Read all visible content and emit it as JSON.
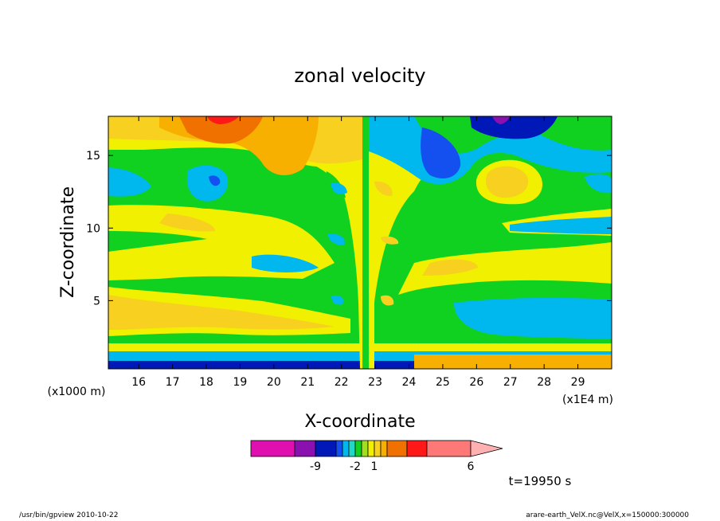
{
  "chart_data": {
    "type": "heatmap",
    "title": "zonal velocity",
    "xlabel": "X-coordinate",
    "ylabel": "Z-coordinate",
    "x_unit": "(x1E4 m)",
    "y_unit": "(x1000 m)",
    "xlim": [
      15.1,
      30.0
    ],
    "ylim": [
      0.3,
      17.7
    ],
    "x_ticks": [
      16,
      17,
      18,
      19,
      20,
      21,
      22,
      23,
      24,
      25,
      26,
      27,
      28,
      29
    ],
    "y_ticks": [
      5,
      10,
      15
    ],
    "time_label": "t=19950 s",
    "colorbar": {
      "ticks": [
        {
          "label": "-9",
          "index": 2
        },
        {
          "label": "-2",
          "index": 6
        },
        {
          "label": "1",
          "index": 9
        },
        {
          "label": "6",
          "index": 14
        }
      ],
      "colors": [
        "#e010b0",
        "#8a10b0",
        "#0018b8",
        "#1450f0",
        "#00b8ee",
        "#20d8c8",
        "#10d020",
        "#a0e020",
        "#f0f000",
        "#f8d020",
        "#f8b000",
        "#f07000",
        "#ff1818",
        "#ff7878",
        "#ffb0b0"
      ]
    }
  },
  "footer": {
    "left": "/usr/bin/gpview   2010-10-22",
    "right": "arare-earth_VelX.nc@VelX,x=150000:300000"
  }
}
